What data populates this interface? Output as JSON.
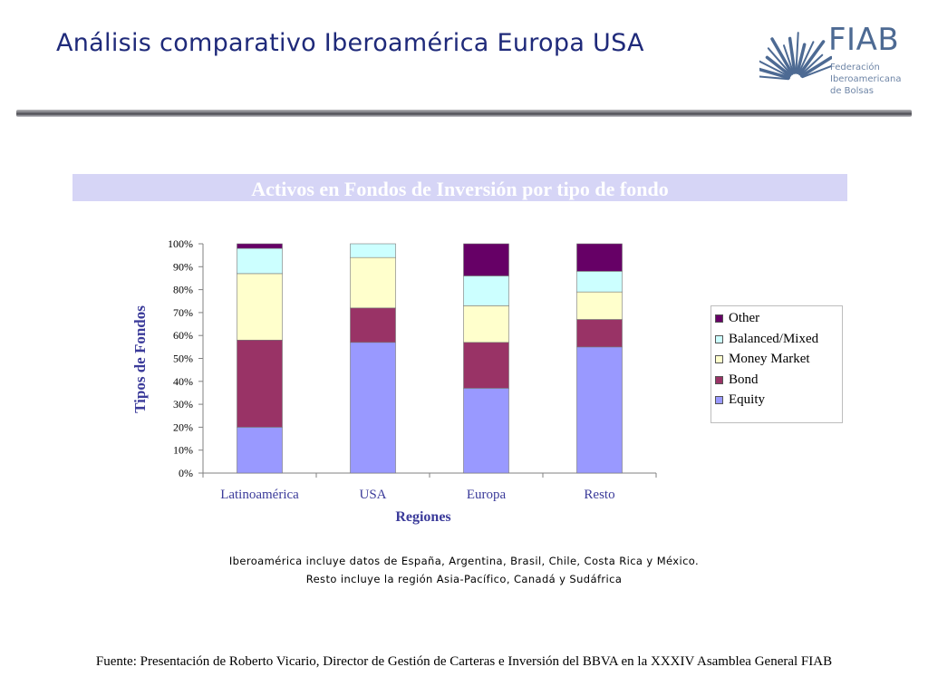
{
  "slide": {
    "title": "Análisis comparativo Iberoamérica Europa USA"
  },
  "logo": {
    "word": "FIAB",
    "subtitle_lines": [
      "Federación",
      "Iberoamericana",
      "de Bolsas"
    ],
    "color": "#4d6a93"
  },
  "chart_data": {
    "type": "bar",
    "stacked": true,
    "title": "Activos en Fondos de Inversión por tipo de fondo",
    "xlabel": "Regiones",
    "ylabel": "Tipos de Fondos",
    "categories": [
      "Latinoamérica",
      "USA",
      "Europa",
      "Resto"
    ],
    "ylim": [
      0,
      100
    ],
    "yticks": [
      "0%",
      "10%",
      "20%",
      "30%",
      "40%",
      "50%",
      "60%",
      "70%",
      "80%",
      "90%",
      "100%"
    ],
    "series": [
      {
        "name": "Equity",
        "color": "#9999ff",
        "values": [
          20,
          57,
          37,
          55
        ]
      },
      {
        "name": "Bond",
        "color": "#993366",
        "values": [
          38,
          15,
          20,
          12
        ]
      },
      {
        "name": "Money Market",
        "color": "#ffffcc",
        "values": [
          29,
          22,
          16,
          12
        ]
      },
      {
        "name": "Balanced/Mixed",
        "color": "#ccffff",
        "values": [
          11,
          6,
          13,
          9
        ]
      },
      {
        "name": "Other",
        "color": "#660066",
        "values": [
          2,
          0,
          14,
          12
        ]
      }
    ],
    "legend_position": "right",
    "legend_order": [
      "Other",
      "Balanced/Mixed",
      "Money Market",
      "Bond",
      "Equity"
    ],
    "grid": false
  },
  "notes": [
    "Iberoamérica incluye datos de España, Argentina, Brasil, Chile, Costa Rica y México.",
    "Resto incluye la región Asia-Pacífico, Canadá y Sudáfrica"
  ],
  "source": "Fuente: Presentación de Roberto Vicario, Director de Gestión de Carteras e Inversión del BBVA en la XXXIV Asamblea General FIAB"
}
